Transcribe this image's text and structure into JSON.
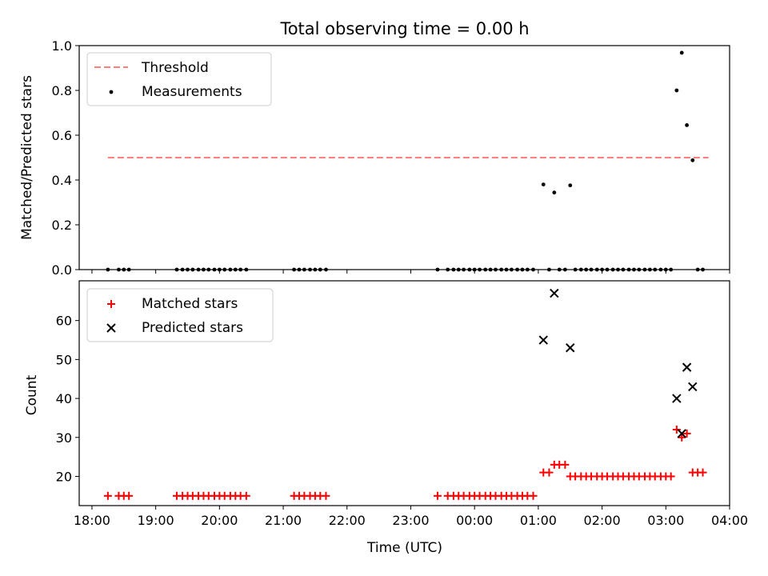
{
  "chart_data": [
    {
      "type": "scatter",
      "title": "Total observing time = 0.00 h",
      "xlabel": "",
      "ylabel": "Matched/Predicted stars",
      "xlim": [
        -0.2,
        10.0
      ],
      "ylim": [
        0.0,
        1.0
      ],
      "yticks": [
        0.0,
        0.2,
        0.4,
        0.6,
        0.8,
        1.0
      ],
      "ytick_labels": [
        "0.0",
        "0.2",
        "0.4",
        "0.6",
        "0.8",
        "1.0"
      ],
      "legend_position": "upper-left",
      "threshold": {
        "name": "Threshold",
        "y": 0.5,
        "x_range": [
          0.25,
          9.67
        ],
        "color": "#ff7f7f"
      },
      "series": [
        {
          "name": "Measurements",
          "color": "#000000",
          "x": [
            0.25,
            0.42,
            0.5,
            0.58,
            1.33,
            1.42,
            1.5,
            1.58,
            1.67,
            1.75,
            1.83,
            1.92,
            2.0,
            2.08,
            2.17,
            2.25,
            2.33,
            2.42,
            3.17,
            3.25,
            3.33,
            3.42,
            3.5,
            3.58,
            3.67,
            5.42,
            5.58,
            5.67,
            5.75,
            5.83,
            5.92,
            6.0,
            6.08,
            6.17,
            6.25,
            6.33,
            6.42,
            6.5,
            6.58,
            6.67,
            6.75,
            6.83,
            6.92,
            7.08,
            7.17,
            7.25,
            7.33,
            7.42,
            7.5,
            7.58,
            7.67,
            7.75,
            7.83,
            7.92,
            8.0,
            8.08,
            8.17,
            8.25,
            8.33,
            8.42,
            8.5,
            8.58,
            8.67,
            8.75,
            8.83,
            8.92,
            9.0,
            9.08,
            9.17,
            9.25,
            9.33,
            9.42,
            9.5,
            9.58
          ],
          "y": [
            0,
            0,
            0,
            0,
            0,
            0,
            0,
            0,
            0,
            0,
            0,
            0,
            0,
            0,
            0,
            0,
            0,
            0,
            0,
            0,
            0,
            0,
            0,
            0,
            0,
            0,
            0,
            0,
            0,
            0,
            0,
            0,
            0,
            0,
            0,
            0,
            0,
            0,
            0,
            0,
            0,
            0,
            0,
            0.38,
            0,
            0.344,
            0,
            0,
            0.376,
            0,
            0,
            0,
            0,
            0,
            0,
            0,
            0,
            0,
            0,
            0,
            0,
            0,
            0,
            0,
            0,
            0,
            0,
            0,
            0.8,
            0.968,
            0.645,
            0.488,
            0,
            0
          ]
        }
      ]
    },
    {
      "type": "scatter",
      "xlabel": "Time (UTC)",
      "ylabel": "Count",
      "xlim": [
        -0.2,
        10.0
      ],
      "ylim": [
        12.5,
        70.2
      ],
      "xticks": [
        0,
        1,
        2,
        3,
        4,
        5,
        6,
        7,
        8,
        9,
        10
      ],
      "xtick_labels": [
        "18:00",
        "19:00",
        "20:00",
        "21:00",
        "22:00",
        "23:00",
        "00:00",
        "01:00",
        "02:00",
        "03:00",
        "04:00"
      ],
      "yticks": [
        20,
        30,
        40,
        50,
        60
      ],
      "ytick_labels": [
        "20",
        "30",
        "40",
        "50",
        "60"
      ],
      "legend_position": "upper-left",
      "series": [
        {
          "name": "Matched stars",
          "marker": "+",
          "color": "#ff0000",
          "x": [
            0.25,
            0.42,
            0.5,
            0.58,
            1.33,
            1.42,
            1.5,
            1.58,
            1.67,
            1.75,
            1.83,
            1.92,
            2.0,
            2.08,
            2.17,
            2.25,
            2.33,
            2.42,
            3.17,
            3.25,
            3.33,
            3.42,
            3.5,
            3.58,
            3.67,
            5.42,
            5.58,
            5.67,
            5.75,
            5.83,
            5.92,
            6.0,
            6.08,
            6.17,
            6.25,
            6.33,
            6.42,
            6.5,
            6.58,
            6.67,
            6.75,
            6.83,
            6.92,
            7.08,
            7.17,
            7.25,
            7.33,
            7.42,
            7.5,
            7.58,
            7.67,
            7.75,
            7.83,
            7.92,
            8.0,
            8.08,
            8.17,
            8.25,
            8.33,
            8.42,
            8.5,
            8.58,
            8.67,
            8.75,
            8.83,
            8.92,
            9.0,
            9.08,
            9.17,
            9.25,
            9.33,
            9.42,
            9.5,
            9.58
          ],
          "y": [
            15,
            15,
            15,
            15,
            15,
            15,
            15,
            15,
            15,
            15,
            15,
            15,
            15,
            15,
            15,
            15,
            15,
            15,
            15,
            15,
            15,
            15,
            15,
            15,
            15,
            15,
            15,
            15,
            15,
            15,
            15,
            15,
            15,
            15,
            15,
            15,
            15,
            15,
            15,
            15,
            15,
            15,
            15,
            21,
            21,
            23,
            23,
            23,
            20,
            20,
            20,
            20,
            20,
            20,
            20,
            20,
            20,
            20,
            20,
            20,
            20,
            20,
            20,
            20,
            20,
            20,
            20,
            20,
            32,
            30,
            31,
            21,
            21,
            21
          ]
        },
        {
          "name": "Predicted stars",
          "marker": "x",
          "color": "#000000",
          "x": [
            7.08,
            7.25,
            7.5,
            9.17,
            9.25,
            9.33,
            9.42
          ],
          "y": [
            55,
            67,
            53,
            40,
            31,
            48,
            43
          ]
        }
      ]
    }
  ]
}
